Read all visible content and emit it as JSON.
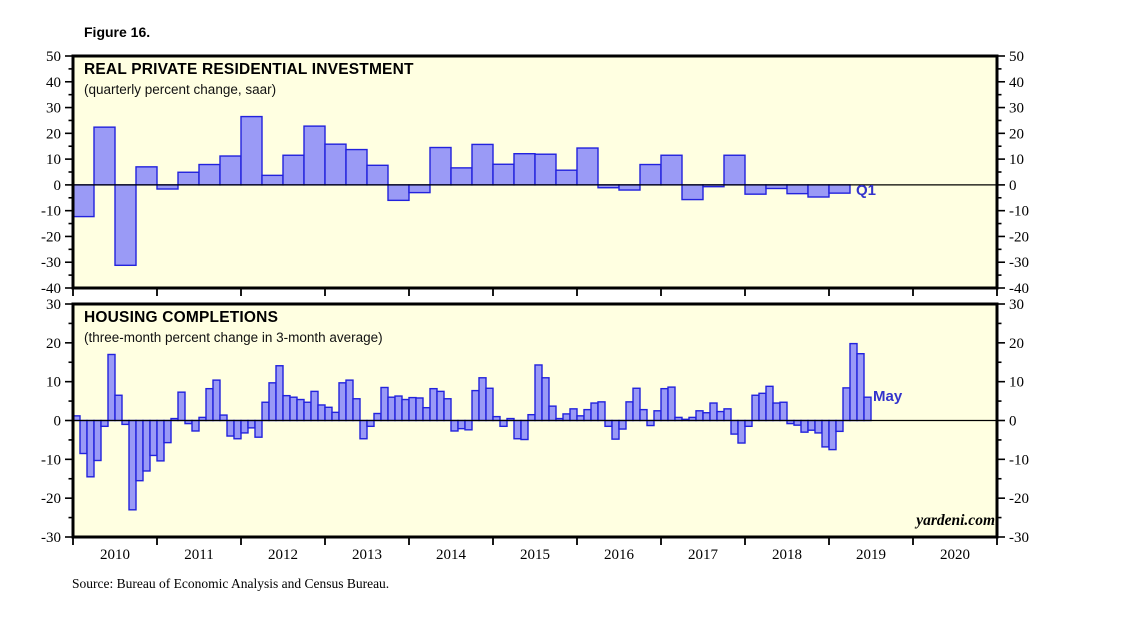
{
  "figure_label": "Figure 16.",
  "source_note": "Source: Bureau of Economic Analysis and Census Bureau.",
  "watermark": "yardeni.com",
  "colors": {
    "plot_bg": "#FFFFE1",
    "bar_fill": "#9A9AF6",
    "bar_border": "#2222DD",
    "frame": "#000000",
    "annotation_blue": "#3333CC"
  },
  "x_axis_years": [
    "2010",
    "2011",
    "2012",
    "2013",
    "2014",
    "2015",
    "2016",
    "2017",
    "2018",
    "2019",
    "2020"
  ],
  "chart_data": [
    {
      "type": "bar",
      "title": "REAL PRIVATE RESIDENTIAL INVESTMENT",
      "subtitle": "(quarterly percent change, saar)",
      "end_label": "Q1",
      "ylim": [
        -40,
        50
      ],
      "ytick_labels": [
        50,
        40,
        30,
        20,
        10,
        0,
        -10,
        -20,
        -30,
        -40
      ],
      "minor_tick_step": 5,
      "xlim_years": [
        2010,
        2021
      ],
      "grid": false,
      "legend_position": "none",
      "categories": [
        "2010Q1",
        "2010Q2",
        "2010Q3",
        "2010Q4",
        "2011Q1",
        "2011Q2",
        "2011Q3",
        "2011Q4",
        "2012Q1",
        "2012Q2",
        "2012Q3",
        "2012Q4",
        "2013Q1",
        "2013Q2",
        "2013Q3",
        "2013Q4",
        "2014Q1",
        "2014Q2",
        "2014Q3",
        "2014Q4",
        "2015Q1",
        "2015Q2",
        "2015Q3",
        "2015Q4",
        "2016Q1",
        "2016Q2",
        "2016Q3",
        "2016Q4",
        "2017Q1",
        "2017Q2",
        "2017Q3",
        "2017Q4",
        "2018Q1",
        "2018Q2",
        "2018Q3",
        "2018Q4",
        "2019Q1"
      ],
      "values": [
        -12.3,
        22.4,
        -31.2,
        7.0,
        -1.6,
        4.9,
        7.9,
        11.2,
        26.5,
        3.7,
        11.5,
        22.8,
        15.8,
        13.7,
        7.6,
        -6.0,
        -3.0,
        14.5,
        6.6,
        15.7,
        8.0,
        12.1,
        11.9,
        5.7,
        14.3,
        -1.1,
        -2.0,
        7.9,
        11.5,
        -5.7,
        -0.7,
        11.5,
        -3.6,
        -1.4,
        -3.4,
        -4.7,
        -3.2
      ]
    },
    {
      "type": "bar",
      "title": "HOUSING COMPLETIONS",
      "subtitle": "(three-month percent change in 3-month average)",
      "end_label": "May",
      "ylim": [
        -30,
        30
      ],
      "ytick_labels": [
        30,
        20,
        10,
        0,
        -10,
        -20,
        -30
      ],
      "minor_tick_step": 5,
      "xlim_years": [
        2010,
        2021
      ],
      "grid": false,
      "legend_position": "none",
      "categories": [
        "2009-12",
        "2010-01",
        "2010-02",
        "2010-03",
        "2010-04",
        "2010-05",
        "2010-06",
        "2010-07",
        "2010-08",
        "2010-09",
        "2010-10",
        "2010-11",
        "2010-12",
        "2011-01",
        "2011-02",
        "2011-03",
        "2011-04",
        "2011-05",
        "2011-06",
        "2011-07",
        "2011-08",
        "2011-09",
        "2011-10",
        "2011-11",
        "2011-12",
        "2012-01",
        "2012-02",
        "2012-03",
        "2012-04",
        "2012-05",
        "2012-06",
        "2012-07",
        "2012-08",
        "2012-09",
        "2012-10",
        "2012-11",
        "2012-12",
        "2013-01",
        "2013-02",
        "2013-03",
        "2013-04",
        "2013-05",
        "2013-06",
        "2013-07",
        "2013-08",
        "2013-09",
        "2013-10",
        "2013-11",
        "2013-12",
        "2014-01",
        "2014-02",
        "2014-03",
        "2014-04",
        "2014-05",
        "2014-06",
        "2014-07",
        "2014-08",
        "2014-09",
        "2014-10",
        "2014-11",
        "2014-12",
        "2015-01",
        "2015-02",
        "2015-03",
        "2015-04",
        "2015-05",
        "2015-06",
        "2015-07",
        "2015-08",
        "2015-09",
        "2015-10",
        "2015-11",
        "2015-12",
        "2016-01",
        "2016-02",
        "2016-03",
        "2016-04",
        "2016-05",
        "2016-06",
        "2016-07",
        "2016-08",
        "2016-09",
        "2016-10",
        "2016-11",
        "2016-12",
        "2017-01",
        "2017-02",
        "2017-03",
        "2017-04",
        "2017-05",
        "2017-06",
        "2017-07",
        "2017-08",
        "2017-09",
        "2017-10",
        "2017-11",
        "2017-12",
        "2018-01",
        "2018-02",
        "2018-03",
        "2018-04",
        "2018-05",
        "2018-06",
        "2018-07",
        "2018-08",
        "2018-09",
        "2018-10",
        "2018-11",
        "2018-12",
        "2019-01",
        "2019-02",
        "2019-03",
        "2019-04",
        "2019-05"
      ],
      "values": [
        1.2,
        -8.5,
        -14.5,
        -10.3,
        -1.5,
        17.0,
        6.5,
        -1.0,
        -23.0,
        -15.5,
        -13.0,
        -9.0,
        -10.4,
        -5.7,
        0.5,
        7.3,
        -0.8,
        -2.7,
        0.8,
        8.2,
        10.4,
        1.4,
        -4.0,
        -4.7,
        -3.2,
        -1.9,
        -4.3,
        4.7,
        9.7,
        14.1,
        6.4,
        6.0,
        5.4,
        4.7,
        7.5,
        4.0,
        3.4,
        2.1,
        9.7,
        10.4,
        5.6,
        -4.7,
        -1.5,
        1.8,
        8.5,
        6.0,
        6.3,
        5.4,
        5.9,
        5.8,
        3.3,
        8.2,
        7.5,
        5.6,
        -2.7,
        -2.1,
        -2.4,
        7.7,
        11.0,
        8.3,
        1.0,
        -1.5,
        0.5,
        -4.7,
        -4.9,
        1.5,
        14.3,
        11.0,
        3.7,
        0.5,
        1.7,
        3.0,
        1.2,
        2.8,
        4.5,
        4.8,
        -1.5,
        -4.8,
        -2.2,
        4.8,
        8.3,
        2.8,
        -1.3,
        2.5,
        8.2,
        8.6,
        0.8,
        0.3,
        0.8,
        2.5,
        2.0,
        4.5,
        2.3,
        3.0,
        -3.5,
        -5.8,
        -1.5,
        6.5,
        7.0,
        8.8,
        4.5,
        4.7,
        -0.8,
        -1.2,
        -3.0,
        -2.5,
        -3.2,
        -6.8,
        -7.5,
        -2.8,
        8.4,
        19.8,
        17.2,
        6.0
      ]
    }
  ]
}
